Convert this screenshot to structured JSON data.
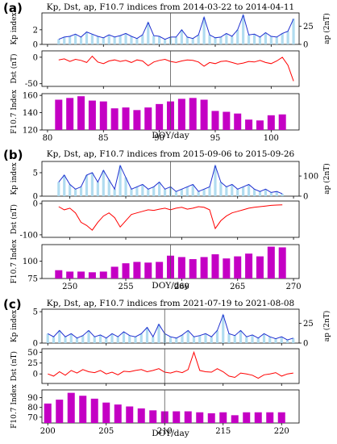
{
  "chart_data": [
    {
      "type": "line",
      "panel_label": "(a)",
      "title": "Kp, Dst, ap, F10.7 indices from 2014-03-22 to 2014-04-11",
      "xlabel": "DOY/day",
      "xlim": [
        79.5,
        102.5
      ],
      "xticks": [
        80,
        85,
        90,
        95,
        100
      ],
      "marker_x": 91,
      "kp": {
        "ylabel": "Kp index",
        "ylim": [
          0,
          4.3
        ],
        "yticks": [
          0,
          2
        ],
        "ap_ylabel": "ap (2nT)",
        "ap_ticks": [
          0,
          25
        ],
        "x": [
          81,
          81.5,
          82,
          82.5,
          83,
          83.5,
          84,
          84.5,
          85,
          85.5,
          86,
          86.5,
          87,
          87.5,
          88,
          88.5,
          89,
          89.5,
          90,
          90.5,
          91,
          91.5,
          92,
          92.5,
          93,
          93.5,
          94,
          94.5,
          95,
          95.5,
          96,
          96.5,
          97,
          97.5,
          98,
          98.5,
          99,
          99.5,
          100,
          100.5,
          101,
          101.5,
          102
        ],
        "values": [
          0.7,
          1.0,
          1.1,
          1.4,
          1.0,
          1.7,
          1.4,
          1.1,
          0.9,
          1.3,
          1.0,
          1.2,
          1.5,
          1.1,
          0.8,
          1.3,
          3.0,
          1.2,
          1.1,
          0.7,
          1.0,
          1.0,
          2.0,
          1.0,
          0.8,
          1.3,
          3.7,
          1.3,
          0.9,
          1.0,
          1.5,
          1.1,
          2.0,
          4.0,
          1.3,
          1.4,
          1.0,
          1.6,
          1.1,
          1.0,
          1.5,
          1.8,
          3.5
        ]
      },
      "dst": {
        "ylabel": "Dst (nT)",
        "ylim": [
          -55,
          12
        ],
        "yticks": [
          -50,
          0
        ],
        "x": [
          81,
          81.5,
          82,
          82.5,
          83,
          83.5,
          84,
          84.5,
          85,
          85.5,
          86,
          86.5,
          87,
          87.5,
          88,
          88.5,
          89,
          89.5,
          90,
          90.5,
          91,
          91.5,
          92,
          92.5,
          93,
          93.5,
          94,
          94.5,
          95,
          95.5,
          96,
          96.5,
          97,
          97.5,
          98,
          98.5,
          99,
          99.5,
          100,
          100.5,
          101,
          101.5,
          102
        ],
        "values": [
          -5,
          -3,
          -8,
          -4,
          -6,
          -10,
          2,
          -9,
          -12,
          -7,
          -5,
          -8,
          -6,
          -10,
          -5,
          -7,
          -16,
          -9,
          -6,
          -4,
          -8,
          -10,
          -7,
          -5,
          -6,
          -9,
          -17,
          -10,
          -12,
          -8,
          -7,
          -10,
          -13,
          -11,
          -8,
          -9,
          -6,
          -10,
          -12,
          -7,
          0,
          -15,
          -45
        ]
      },
      "f107": {
        "ylabel": "F10.7 Index",
        "ylim": [
          120,
          162
        ],
        "yticks": [
          120,
          140,
          160
        ],
        "days": [
          81,
          82,
          83,
          84,
          85,
          86,
          87,
          88,
          89,
          90,
          91,
          92,
          93,
          94,
          95,
          96,
          97,
          98,
          99,
          100,
          101
        ],
        "values": [
          155,
          157,
          159,
          154,
          153,
          145,
          146,
          143,
          146,
          150,
          153,
          156,
          157,
          155,
          142,
          141,
          139,
          132,
          131,
          137,
          138
        ]
      }
    },
    {
      "type": "line",
      "panel_label": "(b)",
      "title": "Kp, Dst, ap, F10.7 indices from 2015-09-06 to 2015-09-26",
      "xlabel": "DOY/day",
      "xlim": [
        247.5,
        270.5
      ],
      "xticks": [
        250,
        255,
        260,
        265,
        270
      ],
      "marker_x": 259,
      "kp": {
        "ylabel": "Kp index",
        "ylim": [
          0,
          7.4
        ],
        "yticks": [
          0,
          5
        ],
        "ap_ylabel": "ap (2nT)",
        "ap_ticks": [
          0,
          100
        ],
        "x": [
          249,
          249.5,
          250,
          250.5,
          251,
          251.5,
          252,
          252.5,
          253,
          253.5,
          254,
          254.5,
          255,
          255.5,
          256,
          256.5,
          257,
          257.5,
          258,
          258.5,
          259,
          259.5,
          260,
          260.5,
          261,
          261.5,
          262,
          262.5,
          263,
          263.5,
          264,
          264.5,
          265,
          265.5,
          266,
          266.5,
          267,
          267.5,
          268,
          268.5,
          269
        ],
        "values": [
          3.0,
          4.5,
          2.5,
          1.5,
          2.0,
          4.5,
          5.0,
          3.0,
          5.5,
          3.5,
          1.5,
          6.5,
          4.0,
          1.5,
          2.0,
          2.5,
          1.5,
          2.0,
          3.0,
          1.5,
          2.0,
          1.0,
          1.5,
          2.0,
          2.5,
          1.0,
          1.5,
          2.0,
          6.5,
          3.0,
          2.0,
          2.5,
          1.5,
          2.0,
          2.5,
          1.5,
          1.0,
          1.5,
          0.8,
          1.0,
          0.5
        ]
      },
      "dst": {
        "ylabel": "Dst (nT)",
        "ylim": [
          -108,
          8
        ],
        "yticks": [
          -100,
          0
        ],
        "x": [
          249,
          249.5,
          250,
          250.5,
          251,
          251.5,
          252,
          252.5,
          253,
          253.5,
          254,
          254.5,
          255,
          255.5,
          256,
          256.5,
          257,
          257.5,
          258,
          258.5,
          259,
          259.5,
          260,
          260.5,
          261,
          261.5,
          262,
          262.5,
          263,
          263.5,
          264,
          264.5,
          265,
          265.5,
          266,
          266.5,
          267,
          267.5,
          268,
          268.5,
          269
        ],
        "values": [
          -10,
          -20,
          -15,
          -30,
          -60,
          -70,
          -85,
          -60,
          -40,
          -30,
          -45,
          -75,
          -55,
          -35,
          -30,
          -25,
          -20,
          -22,
          -18,
          -15,
          -20,
          -15,
          -12,
          -18,
          -15,
          -10,
          -12,
          -20,
          -80,
          -55,
          -40,
          -30,
          -25,
          -20,
          -15,
          -12,
          -10,
          -8,
          -6,
          -5,
          -4
        ]
      },
      "f107": {
        "ylabel": "F10.7 Index",
        "ylim": [
          75,
          124
        ],
        "yticks": [
          75,
          100
        ],
        "days": [
          249,
          250,
          251,
          252,
          253,
          254,
          255,
          256,
          257,
          258,
          259,
          260,
          261,
          262,
          263,
          264,
          265,
          266,
          267,
          268,
          269
        ],
        "values": [
          87,
          85,
          85,
          84,
          85,
          92,
          97,
          99,
          98,
          99,
          108,
          106,
          103,
          106,
          110,
          104,
          107,
          111,
          107,
          121,
          120
        ]
      }
    },
    {
      "type": "line",
      "panel_label": "(c)",
      "title": "Kp, Dst, ap, F10.7 indices from 2021-07-19 to 2021-08-08",
      "xlabel": "DOY/day",
      "xlim": [
        199.5,
        221.5
      ],
      "xticks": [
        200,
        205,
        210,
        215,
        220
      ],
      "marker_x": 210,
      "kp": {
        "ylabel": "Kp index",
        "ylim": [
          0,
          5.4
        ],
        "yticks": [
          0,
          5
        ],
        "ap_ylabel": "ap (2nT)",
        "ap_ticks": [
          0,
          25
        ],
        "x": [
          200,
          200.5,
          201,
          201.5,
          202,
          202.5,
          203,
          203.5,
          204,
          204.5,
          205,
          205.5,
          206,
          206.5,
          207,
          207.5,
          208,
          208.5,
          209,
          209.5,
          210,
          210.5,
          211,
          211.5,
          212,
          212.5,
          213,
          213.5,
          214,
          214.5,
          215,
          215.5,
          216,
          216.5,
          217,
          217.5,
          218,
          218.5,
          219,
          219.5,
          220,
          220.5,
          221
        ],
        "values": [
          1.5,
          1.0,
          2.0,
          1.0,
          1.5,
          0.8,
          1.2,
          2.0,
          1.0,
          1.3,
          0.8,
          1.5,
          1.0,
          1.8,
          1.2,
          1.0,
          1.5,
          2.5,
          1.0,
          3.0,
          1.5,
          1.0,
          0.8,
          1.3,
          2.0,
          1.0,
          1.2,
          1.5,
          1.0,
          2.0,
          4.5,
          1.5,
          1.2,
          2.0,
          1.0,
          1.3,
          0.8,
          1.5,
          1.0,
          0.7,
          1.0,
          0.5,
          0.8
        ]
      },
      "dst": {
        "ylabel": "Dst (nT)",
        "ylim": [
          -22,
          58
        ],
        "yticks": [
          0,
          25,
          50
        ],
        "x": [
          200,
          200.5,
          201,
          201.5,
          202,
          202.5,
          203,
          203.5,
          204,
          204.5,
          205,
          205.5,
          206,
          206.5,
          207,
          207.5,
          208,
          208.5,
          209,
          209.5,
          210,
          210.5,
          211,
          211.5,
          212,
          212.5,
          213,
          213.5,
          214,
          214.5,
          215,
          215.5,
          216,
          216.5,
          217,
          217.5,
          218,
          218.5,
          219,
          219.5,
          220,
          220.5,
          221
        ],
        "values": [
          0,
          -5,
          5,
          -3,
          8,
          2,
          10,
          5,
          3,
          8,
          0,
          4,
          -2,
          6,
          5,
          8,
          10,
          5,
          8,
          12,
          4,
          2,
          6,
          3,
          10,
          50,
          8,
          5,
          4,
          12,
          5,
          -5,
          -8,
          2,
          0,
          -3,
          -10,
          -2,
          0,
          3,
          -5,
          0,
          2
        ]
      },
      "f107": {
        "ylabel": "F10.7 Index",
        "ylim": [
          64,
          98
        ],
        "yticks": [
          70,
          80,
          90
        ],
        "days": [
          200,
          201,
          202,
          203,
          204,
          205,
          206,
          207,
          208,
          209,
          210,
          211,
          212,
          213,
          214,
          215,
          216,
          217,
          218,
          219,
          220
        ],
        "values": [
          84,
          88,
          95,
          92,
          89,
          85,
          83,
          81,
          79,
          77,
          76,
          76,
          76,
          75,
          74,
          75,
          72,
          75,
          75,
          75,
          75
        ]
      }
    }
  ],
  "colors": {
    "kp_line": "#1f2fd0",
    "ap_bar": "#a8d8ee",
    "dst_line": "#ff0000",
    "f107_bar": "#c400c4",
    "marker": "#555555"
  }
}
